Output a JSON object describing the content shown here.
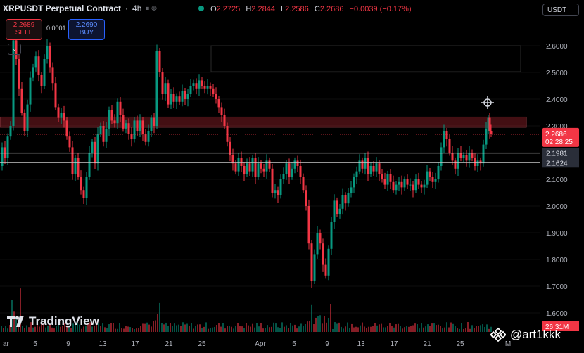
{
  "header": {
    "symbol": "XRPUSDT Perpetual Contract",
    "interval_sep": "·",
    "interval": "4h",
    "indicator_icons": "⏸ ⊕",
    "ohlc": {
      "o_label": "O",
      "o": "2.2725",
      "h_label": "H",
      "h": "2.2844",
      "l_label": "L",
      "l": "2.2586",
      "c_label": "C",
      "c": "2.2686",
      "change": "−0.0039 (−0.17%)"
    }
  },
  "trade": {
    "sell_price": "2.2689",
    "sell_label": "SELL",
    "buy_price": "2.2690",
    "buy_label": "BUY",
    "spread": "0.0001"
  },
  "currency_label": "USDT",
  "collapse_glyph": "⌄",
  "brand": "TradingView",
  "watermark": "@art1kkk",
  "chart_data": {
    "type": "candlestick",
    "ylim": [
      1.55,
      2.72
    ],
    "y_ticks": [
      "2.6000",
      "2.5000",
      "2.4000",
      "2.3000",
      "2.2000",
      "2.1000",
      "2.0000",
      "1.9000",
      "1.8000",
      "1.7000",
      "1.6000"
    ],
    "x_ticks": [
      "ar",
      "5",
      "9",
      "13",
      "17",
      "21",
      "25",
      "Apr",
      "5",
      "9",
      "13",
      "17",
      "21",
      "25",
      "M"
    ],
    "current_price": "2.2686",
    "countdown": "02:28:25",
    "level_1": "2.1981",
    "level_2": "2.1624",
    "volume_label": "26.31M",
    "resistance_zone": [
      2.295,
      2.333
    ],
    "close_path": [
      [
        0,
        2.15
      ],
      [
        4,
        2.22
      ],
      [
        8,
        2.18
      ],
      [
        12,
        2.26
      ],
      [
        16,
        2.3
      ],
      [
        20,
        2.62
      ],
      [
        24,
        2.55
      ],
      [
        28,
        2.44
      ],
      [
        32,
        2.35
      ],
      [
        36,
        2.28
      ],
      [
        40,
        2.38
      ],
      [
        44,
        2.48
      ],
      [
        48,
        2.52
      ],
      [
        52,
        2.56
      ],
      [
        56,
        2.49
      ],
      [
        60,
        2.45
      ],
      [
        64,
        2.55
      ],
      [
        68,
        2.6
      ],
      [
        72,
        2.52
      ],
      [
        76,
        2.46
      ],
      [
        80,
        2.37
      ],
      [
        84,
        2.33
      ],
      [
        88,
        2.35
      ],
      [
        92,
        2.32
      ],
      [
        96,
        2.26
      ],
      [
        100,
        2.22
      ],
      [
        104,
        2.12
      ],
      [
        108,
        2.18
      ],
      [
        112,
        2.11
      ],
      [
        116,
        2.06
      ],
      [
        120,
        2.03
      ],
      [
        124,
        2.11
      ],
      [
        128,
        2.2
      ],
      [
        132,
        2.24
      ],
      [
        136,
        2.16
      ],
      [
        140,
        2.27
      ],
      [
        144,
        2.3
      ],
      [
        148,
        2.24
      ],
      [
        152,
        2.29
      ],
      [
        156,
        2.36
      ],
      [
        160,
        2.32
      ],
      [
        164,
        2.31
      ],
      [
        168,
        2.39
      ],
      [
        172,
        2.34
      ],
      [
        176,
        2.29
      ],
      [
        180,
        2.31
      ],
      [
        184,
        2.27
      ],
      [
        188,
        2.25
      ],
      [
        192,
        2.32
      ],
      [
        196,
        2.28
      ],
      [
        200,
        2.32
      ],
      [
        204,
        2.27
      ],
      [
        208,
        2.24
      ],
      [
        212,
        2.28
      ],
      [
        216,
        2.33
      ],
      [
        220,
        2.3
      ],
      [
        224,
        2.58
      ],
      [
        228,
        2.5
      ],
      [
        232,
        2.42
      ],
      [
        236,
        2.46
      ],
      [
        240,
        2.38
      ],
      [
        244,
        2.42
      ],
      [
        248,
        2.39
      ],
      [
        252,
        2.41
      ],
      [
        256,
        2.39
      ],
      [
        260,
        2.43
      ],
      [
        264,
        2.4
      ],
      [
        268,
        2.42
      ],
      [
        272,
        2.45
      ],
      [
        276,
        2.46
      ],
      [
        280,
        2.44
      ],
      [
        284,
        2.47
      ],
      [
        288,
        2.45
      ],
      [
        292,
        2.44
      ],
      [
        296,
        2.45
      ],
      [
        300,
        2.44
      ],
      [
        304,
        2.42
      ],
      [
        308,
        2.4
      ],
      [
        312,
        2.37
      ],
      [
        316,
        2.34
      ],
      [
        320,
        2.3
      ],
      [
        324,
        2.24
      ],
      [
        328,
        2.19
      ],
      [
        332,
        2.16
      ],
      [
        336,
        2.13
      ],
      [
        340,
        2.18
      ],
      [
        344,
        2.15
      ],
      [
        348,
        2.12
      ],
      [
        352,
        2.16
      ],
      [
        356,
        2.13
      ],
      [
        360,
        2.18
      ],
      [
        364,
        2.11
      ],
      [
        368,
        2.16
      ],
      [
        372,
        2.14
      ],
      [
        376,
        2.13
      ],
      [
        380,
        2.17
      ],
      [
        384,
        2.14
      ],
      [
        388,
        2.05
      ],
      [
        392,
        2.06
      ],
      [
        396,
        2.04
      ],
      [
        400,
        2.1
      ],
      [
        404,
        2.12
      ],
      [
        408,
        2.16
      ],
      [
        412,
        2.11
      ],
      [
        416,
        2.14
      ],
      [
        420,
        2.17
      ],
      [
        424,
        2.15
      ],
      [
        428,
        2.11
      ],
      [
        432,
        2.06
      ],
      [
        436,
        2.0
      ],
      [
        440,
        1.86
      ],
      [
        444,
        1.72
      ],
      [
        448,
        1.82
      ],
      [
        452,
        1.9
      ],
      [
        456,
        1.86
      ],
      [
        460,
        1.78
      ],
      [
        464,
        1.74
      ],
      [
        468,
        1.84
      ],
      [
        472,
        1.94
      ],
      [
        476,
        2.02
      ],
      [
        480,
        1.97
      ],
      [
        484,
        1.99
      ],
      [
        488,
        2.04
      ],
      [
        492,
        2.01
      ],
      [
        496,
        2.05
      ],
      [
        500,
        2.07
      ],
      [
        504,
        2.11
      ],
      [
        508,
        2.13
      ],
      [
        512,
        2.17
      ],
      [
        516,
        2.14
      ],
      [
        520,
        2.18
      ],
      [
        524,
        2.12
      ],
      [
        528,
        2.15
      ],
      [
        532,
        2.13
      ],
      [
        536,
        2.16
      ],
      [
        540,
        2.12
      ],
      [
        544,
        2.1
      ],
      [
        548,
        2.08
      ],
      [
        552,
        2.12
      ],
      [
        556,
        2.09
      ],
      [
        560,
        2.06
      ],
      [
        564,
        2.08
      ],
      [
        568,
        2.09
      ],
      [
        572,
        2.07
      ],
      [
        576,
        2.1
      ],
      [
        580,
        2.08
      ],
      [
        584,
        2.08
      ],
      [
        588,
        2.06
      ],
      [
        592,
        2.1
      ],
      [
        596,
        2.08
      ],
      [
        600,
        2.07
      ],
      [
        604,
        2.08
      ],
      [
        608,
        2.13
      ],
      [
        612,
        2.11
      ],
      [
        616,
        2.09
      ],
      [
        620,
        2.1
      ],
      [
        624,
        2.15
      ],
      [
        628,
        2.22
      ],
      [
        632,
        2.28
      ],
      [
        636,
        2.25
      ],
      [
        640,
        2.2
      ],
      [
        644,
        2.17
      ],
      [
        648,
        2.14
      ],
      [
        652,
        2.2
      ],
      [
        656,
        2.18
      ],
      [
        660,
        2.19
      ],
      [
        664,
        2.17
      ],
      [
        668,
        2.2
      ],
      [
        672,
        2.18
      ],
      [
        676,
        2.15
      ],
      [
        680,
        2.17
      ],
      [
        684,
        2.16
      ],
      [
        688,
        2.23
      ],
      [
        692,
        2.29
      ],
      [
        694,
        2.33
      ],
      [
        696,
        2.28
      ],
      [
        698,
        2.27
      ]
    ]
  },
  "icons": {
    "status_dot": "status-dot-icon",
    "crosshair": "crosshair-icon",
    "tv_logo": "tradingview-logo-icon",
    "watermark_logo": "exchange-logo-icon"
  }
}
